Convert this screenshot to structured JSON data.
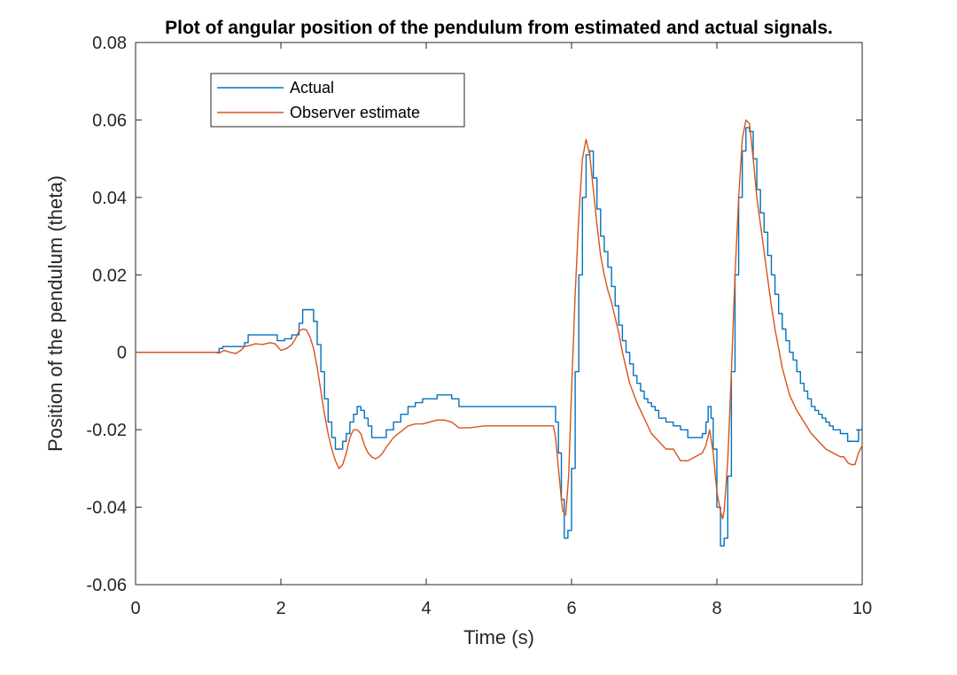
{
  "chart_data": {
    "type": "line",
    "title": "Plot of angular position of the pendulum from estimated and actual signals.",
    "xlabel": "Time (s)",
    "ylabel": "Position of the pendulum (theta)",
    "xlim": [
      0,
      10
    ],
    "ylim": [
      -0.06,
      0.08
    ],
    "xticks": [
      0,
      2,
      4,
      6,
      8,
      10
    ],
    "xtick_labels": [
      "0",
      "2",
      "4",
      "6",
      "8",
      "10"
    ],
    "yticks": [
      -0.06,
      -0.04,
      -0.02,
      0,
      0.02,
      0.04,
      0.06,
      0.08
    ],
    "ytick_labels": [
      "-0.06",
      "-0.04",
      "-0.02",
      "0",
      "0.02",
      "0.04",
      "0.06",
      "0.08"
    ],
    "grid": false,
    "legend_position": "top-left",
    "series": [
      {
        "name": "Actual",
        "color": "#0072BD",
        "step": true,
        "x": [
          0,
          1.1,
          1.15,
          1.2,
          1.5,
          1.55,
          1.9,
          1.95,
          2.05,
          2.15,
          2.25,
          2.3,
          2.4,
          2.45,
          2.5,
          2.55,
          2.6,
          2.65,
          2.7,
          2.75,
          2.8,
          2.85,
          2.9,
          2.95,
          3.0,
          3.05,
          3.1,
          3.15,
          3.2,
          3.25,
          3.45,
          3.55,
          3.65,
          3.75,
          3.85,
          3.95,
          4.15,
          4.35,
          4.45,
          5.75,
          5.78,
          5.82,
          5.86,
          5.9,
          5.95,
          6.0,
          6.05,
          6.1,
          6.15,
          6.2,
          6.25,
          6.3,
          6.35,
          6.4,
          6.45,
          6.5,
          6.55,
          6.6,
          6.65,
          6.7,
          6.75,
          6.8,
          6.85,
          6.9,
          6.95,
          7.0,
          7.05,
          7.1,
          7.15,
          7.2,
          7.3,
          7.4,
          7.5,
          7.6,
          7.7,
          7.8,
          7.85,
          7.88,
          7.92,
          7.95,
          8.0,
          8.05,
          8.1,
          8.15,
          8.2,
          8.25,
          8.3,
          8.35,
          8.4,
          8.45,
          8.5,
          8.55,
          8.6,
          8.65,
          8.7,
          8.75,
          8.8,
          8.85,
          8.9,
          8.95,
          9.0,
          9.05,
          9.1,
          9.15,
          9.2,
          9.25,
          9.3,
          9.35,
          9.4,
          9.45,
          9.5,
          9.55,
          9.6,
          9.7,
          9.8,
          9.9,
          9.95,
          10.0
        ],
        "y": [
          0,
          0,
          0.001,
          0.0015,
          0.0025,
          0.0045,
          0.0045,
          0.003,
          0.0035,
          0.0045,
          0.0075,
          0.011,
          0.011,
          0.008,
          0.002,
          -0.005,
          -0.012,
          -0.018,
          -0.022,
          -0.025,
          -0.025,
          -0.023,
          -0.021,
          -0.018,
          -0.016,
          -0.014,
          -0.015,
          -0.017,
          -0.019,
          -0.022,
          -0.02,
          -0.018,
          -0.016,
          -0.014,
          -0.013,
          -0.012,
          -0.011,
          -0.012,
          -0.014,
          -0.014,
          -0.018,
          -0.026,
          -0.038,
          -0.048,
          -0.046,
          -0.03,
          -0.005,
          0.02,
          0.04,
          0.051,
          0.052,
          0.045,
          0.037,
          0.03,
          0.026,
          0.022,
          0.017,
          0.012,
          0.007,
          0.003,
          0.0,
          -0.003,
          -0.006,
          -0.008,
          -0.01,
          -0.012,
          -0.013,
          -0.014,
          -0.015,
          -0.017,
          -0.018,
          -0.019,
          -0.02,
          -0.022,
          -0.022,
          -0.021,
          -0.018,
          -0.014,
          -0.017,
          -0.025,
          -0.04,
          -0.05,
          -0.048,
          -0.032,
          -0.005,
          0.02,
          0.04,
          0.052,
          0.058,
          0.057,
          0.05,
          0.042,
          0.036,
          0.031,
          0.025,
          0.02,
          0.015,
          0.01,
          0.006,
          0.003,
          0.0,
          -0.002,
          -0.005,
          -0.008,
          -0.01,
          -0.012,
          -0.014,
          -0.015,
          -0.016,
          -0.017,
          -0.018,
          -0.019,
          -0.02,
          -0.021,
          -0.023,
          -0.023,
          -0.02,
          -0.019
        ]
      },
      {
        "name": "Observer estimate",
        "color": "#D95319",
        "step": false,
        "x": [
          0,
          1.1,
          1.15,
          1.22,
          1.3,
          1.38,
          1.45,
          1.5,
          1.58,
          1.65,
          1.75,
          1.85,
          1.92,
          2.0,
          2.08,
          2.15,
          2.2,
          2.25,
          2.3,
          2.35,
          2.4,
          2.45,
          2.5,
          2.55,
          2.6,
          2.65,
          2.7,
          2.75,
          2.8,
          2.85,
          2.9,
          2.95,
          3.0,
          3.05,
          3.1,
          3.15,
          3.2,
          3.25,
          3.3,
          3.35,
          3.4,
          3.45,
          3.55,
          3.65,
          3.75,
          3.85,
          3.95,
          4.05,
          4.15,
          4.25,
          4.35,
          4.45,
          4.6,
          4.8,
          5.2,
          5.5,
          5.75,
          5.78,
          5.82,
          5.86,
          5.88,
          5.92,
          5.96,
          6.0,
          6.05,
          6.1,
          6.15,
          6.2,
          6.25,
          6.3,
          6.35,
          6.4,
          6.45,
          6.5,
          6.55,
          6.6,
          6.65,
          6.7,
          6.8,
          6.9,
          7.0,
          7.1,
          7.2,
          7.3,
          7.4,
          7.5,
          7.6,
          7.7,
          7.8,
          7.85,
          7.9,
          7.95,
          8.0,
          8.05,
          8.08,
          8.1,
          8.15,
          8.2,
          8.25,
          8.3,
          8.35,
          8.4,
          8.45,
          8.5,
          8.55,
          8.6,
          8.65,
          8.7,
          8.75,
          8.8,
          8.9,
          9.0,
          9.1,
          9.2,
          9.3,
          9.4,
          9.5,
          9.6,
          9.7,
          9.75,
          9.8,
          9.85,
          9.9,
          9.95,
          10.0
        ],
        "y": [
          0,
          0,
          -0.0002,
          0.0005,
          0.0,
          -0.0003,
          0.0005,
          0.0015,
          0.0018,
          0.0022,
          0.002,
          0.0025,
          0.0022,
          0.0005,
          0.001,
          0.002,
          0.0035,
          0.0055,
          0.006,
          0.0058,
          0.004,
          0.001,
          -0.004,
          -0.01,
          -0.016,
          -0.021,
          -0.025,
          -0.028,
          -0.03,
          -0.029,
          -0.026,
          -0.022,
          -0.02,
          -0.02,
          -0.021,
          -0.024,
          -0.026,
          -0.027,
          -0.0275,
          -0.027,
          -0.026,
          -0.0245,
          -0.022,
          -0.0205,
          -0.019,
          -0.0185,
          -0.0185,
          -0.018,
          -0.0175,
          -0.0175,
          -0.018,
          -0.0195,
          -0.0195,
          -0.019,
          -0.019,
          -0.019,
          -0.019,
          -0.022,
          -0.03,
          -0.038,
          -0.041,
          -0.042,
          -0.032,
          -0.01,
          0.015,
          0.035,
          0.05,
          0.055,
          0.051,
          0.042,
          0.033,
          0.025,
          0.02,
          0.016,
          0.013,
          0.009,
          0.005,
          0.0,
          -0.008,
          -0.013,
          -0.017,
          -0.021,
          -0.023,
          -0.025,
          -0.025,
          -0.028,
          -0.028,
          -0.027,
          -0.026,
          -0.024,
          -0.02,
          -0.026,
          -0.036,
          -0.041,
          -0.043,
          -0.041,
          -0.028,
          -0.005,
          0.02,
          0.04,
          0.055,
          0.06,
          0.059,
          0.05,
          0.04,
          0.033,
          0.026,
          0.019,
          0.012,
          0.006,
          -0.004,
          -0.011,
          -0.015,
          -0.018,
          -0.021,
          -0.023,
          -0.025,
          -0.026,
          -0.027,
          -0.027,
          -0.0285,
          -0.029,
          -0.029,
          -0.026,
          -0.024
        ]
      }
    ]
  }
}
